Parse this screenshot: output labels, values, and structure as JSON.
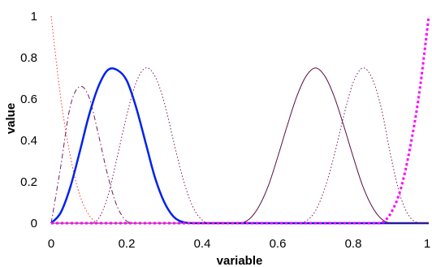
{
  "chart_data": {
    "type": "line",
    "title": "",
    "xlabel": "variable",
    "ylabel": "value",
    "xlim": [
      0,
      1
    ],
    "ylim": [
      0,
      1
    ],
    "x_ticks": [
      "0",
      "0.2",
      "0.4",
      "0.6",
      "0.8",
      "1"
    ],
    "y_ticks": [
      "0",
      "0.2",
      "0.4",
      "0.6",
      "0.8",
      "1"
    ],
    "grid": false,
    "legend": "none",
    "x": [
      0,
      0.025,
      0.05,
      0.075,
      0.1,
      0.125,
      0.15,
      0.175,
      0.2,
      0.225,
      0.25,
      0.275,
      0.3,
      0.325,
      0.35,
      0.375,
      0.4,
      0.425,
      0.45,
      0.475,
      0.5,
      0.525,
      0.55,
      0.575,
      0.6,
      0.625,
      0.65,
      0.675,
      0.7,
      0.725,
      0.75,
      0.775,
      0.8,
      0.825,
      0.85,
      0.875,
      0.9,
      0.925,
      0.95,
      0.975,
      1
    ],
    "series": [
      {
        "color": "#ff3333",
        "style": "dotted",
        "width": 1,
        "values": [
          1.0,
          0.61,
          0.33,
          0.14,
          0.04,
          0.0,
          0,
          0,
          0,
          0,
          0,
          0,
          0,
          0,
          0,
          0,
          0,
          0,
          0,
          0,
          0,
          0,
          0,
          0,
          0,
          0,
          0,
          0,
          0,
          0,
          0,
          0,
          0,
          0,
          0,
          0,
          0,
          0,
          0,
          0,
          0
        ]
      },
      {
        "color": "#7a1a5a",
        "style": "dashdot",
        "width": 1,
        "values": [
          0,
          0.27,
          0.56,
          0.66,
          0.61,
          0.43,
          0.23,
          0.08,
          0.01,
          0,
          0,
          0,
          0,
          0,
          0,
          0,
          0,
          0,
          0,
          0,
          0,
          0,
          0,
          0,
          0,
          0,
          0,
          0,
          0,
          0,
          0,
          0,
          0,
          0,
          0,
          0,
          0,
          0,
          0,
          0,
          0
        ]
      },
      {
        "color": "#0022ee",
        "style": "solid",
        "width": 2.5,
        "values": [
          0,
          0.05,
          0.17,
          0.34,
          0.52,
          0.66,
          0.74,
          0.74,
          0.69,
          0.56,
          0.39,
          0.22,
          0.1,
          0.03,
          0.005,
          0,
          0,
          0,
          0,
          0,
          0,
          0,
          0,
          0,
          0,
          0,
          0,
          0,
          0,
          0,
          0,
          0,
          0,
          0,
          0,
          0,
          0,
          0,
          0,
          0,
          0
        ]
      },
      {
        "color": "#7a1a5a",
        "style": "dotted",
        "width": 1,
        "values": [
          0,
          0,
          0,
          0,
          0,
          0.02,
          0.13,
          0.32,
          0.52,
          0.68,
          0.75,
          0.71,
          0.58,
          0.39,
          0.21,
          0.08,
          0.015,
          0,
          0,
          0,
          0,
          0,
          0,
          0,
          0,
          0,
          0,
          0,
          0,
          0,
          0,
          0,
          0,
          0,
          0,
          0,
          0,
          0,
          0,
          0,
          0
        ]
      },
      {
        "color": "#5a0f40",
        "style": "solid",
        "width": 1,
        "values": [
          0,
          0,
          0,
          0,
          0,
          0,
          0,
          0,
          0,
          0,
          0,
          0,
          0,
          0,
          0,
          0,
          0,
          0,
          0,
          0,
          0,
          0.02,
          0.08,
          0.18,
          0.32,
          0.47,
          0.61,
          0.71,
          0.75,
          0.71,
          0.61,
          0.47,
          0.32,
          0.18,
          0.08,
          0.02,
          0,
          0,
          0,
          0,
          0
        ]
      },
      {
        "color": "#7a1a5a",
        "style": "dotted",
        "width": 1,
        "values": [
          0,
          0,
          0,
          0,
          0,
          0,
          0,
          0,
          0,
          0,
          0,
          0,
          0,
          0,
          0,
          0,
          0,
          0,
          0,
          0,
          0,
          0,
          0,
          0,
          0,
          0,
          0,
          0.01,
          0.06,
          0.17,
          0.33,
          0.52,
          0.68,
          0.75,
          0.7,
          0.55,
          0.32,
          0.13,
          0.03,
          0,
          0
        ]
      },
      {
        "color": "#ff00ff",
        "style": "dotted",
        "width": 3,
        "values": [
          0,
          0,
          0,
          0,
          0,
          0,
          0,
          0,
          0,
          0,
          0,
          0,
          0,
          0,
          0,
          0,
          0,
          0,
          0,
          0,
          0,
          0,
          0,
          0,
          0,
          0,
          0,
          0,
          0,
          0,
          0,
          0,
          0,
          0,
          0,
          0,
          0.05,
          0.16,
          0.36,
          0.63,
          1.0
        ]
      }
    ]
  }
}
